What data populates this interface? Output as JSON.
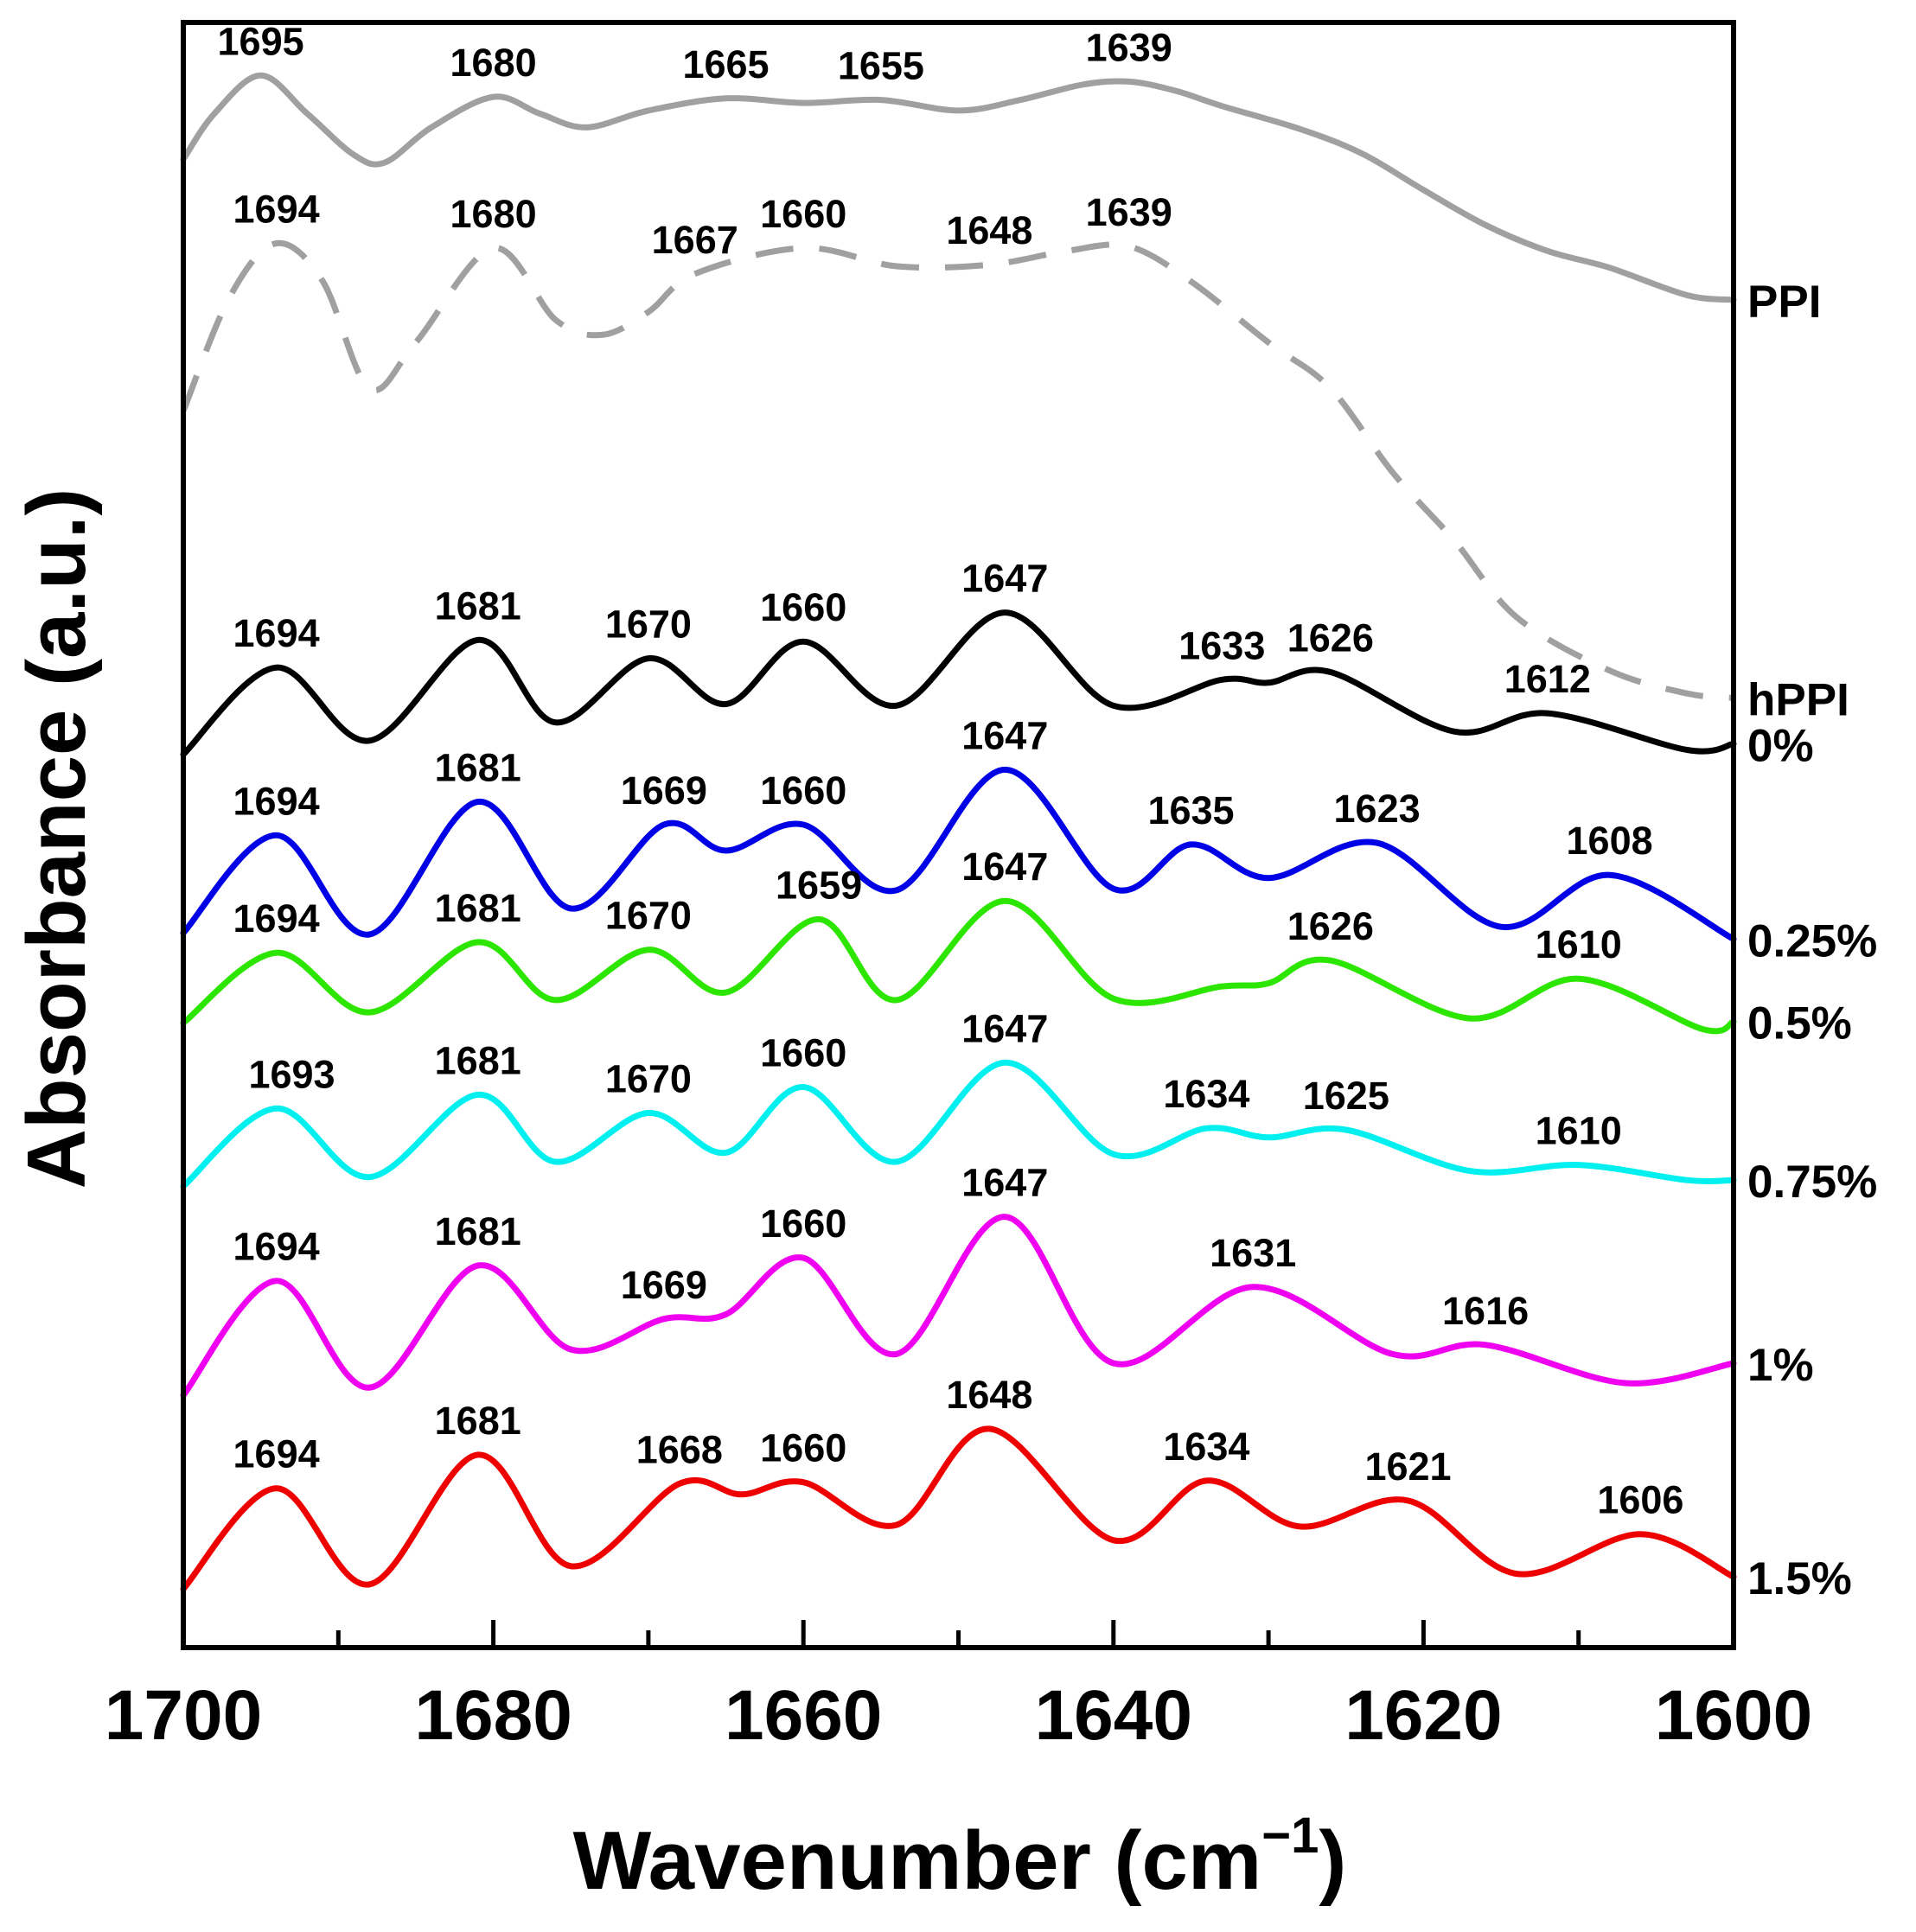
{
  "chart_data": {
    "type": "line",
    "xlabel": "Wavenumber (cm",
    "xlabel_sup": "−1",
    "xlabel_close": ")",
    "ylabel": "Absorbance (a.u.)",
    "xlim": [
      1700,
      1600
    ],
    "x_reversed": true,
    "x_ticks": [
      "1700",
      "1680",
      "1660",
      "1640",
      "1620",
      "1600"
    ],
    "grid": false,
    "legend": "inline labels at right end of each trace",
    "y_units": "arbitrary offset absorbance (0 = lowest trace level, 100 = top)",
    "series": [
      {
        "name": "PPI",
        "color": "#a0a0a0",
        "dash": false,
        "points": [
          [
            1700,
            95.5
          ],
          [
            1698,
            98.5
          ],
          [
            1695,
            101.0
          ],
          [
            1692,
            98.5
          ],
          [
            1689,
            95.8
          ],
          [
            1687,
            95.3
          ],
          [
            1684,
            97.6
          ],
          [
            1680,
            99.6
          ],
          [
            1677,
            98.5
          ],
          [
            1674,
            97.6
          ],
          [
            1670,
            98.7
          ],
          [
            1665,
            99.5
          ],
          [
            1660,
            99.2
          ],
          [
            1655,
            99.4
          ],
          [
            1650,
            98.7
          ],
          [
            1646,
            99.4
          ],
          [
            1642,
            100.4
          ],
          [
            1639,
            100.6
          ],
          [
            1636,
            100.0
          ],
          [
            1633,
            99.0
          ],
          [
            1628,
            97.5
          ],
          [
            1624,
            95.9
          ],
          [
            1620,
            93.5
          ],
          [
            1616,
            91.2
          ],
          [
            1612,
            89.5
          ],
          [
            1608,
            88.4
          ],
          [
            1603,
            86.6
          ],
          [
            1600,
            86.3
          ]
        ]
      },
      {
        "name": "hPPI",
        "color": "#a0a0a0",
        "dash": true,
        "points": [
          [
            1700,
            79.0
          ],
          [
            1697,
            86.5
          ],
          [
            1694,
            90.0
          ],
          [
            1691,
            87.5
          ],
          [
            1688,
            80.5
          ],
          [
            1685,
            83.5
          ],
          [
            1680,
            89.7
          ],
          [
            1676,
            85.0
          ],
          [
            1673,
            84.0
          ],
          [
            1670,
            85.5
          ],
          [
            1667,
            88.0
          ],
          [
            1660,
            89.7
          ],
          [
            1654,
            88.5
          ],
          [
            1648,
            88.6
          ],
          [
            1643,
            89.5
          ],
          [
            1639,
            89.8
          ],
          [
            1635,
            87.5
          ],
          [
            1630,
            83.5
          ],
          [
            1626,
            80.5
          ],
          [
            1622,
            75.0
          ],
          [
            1618,
            70.5
          ],
          [
            1614,
            65.5
          ],
          [
            1608,
            62.0
          ],
          [
            1603,
            60.5
          ],
          [
            1600,
            60.2
          ]
        ]
      },
      {
        "name": "0%",
        "color": "#000000",
        "dash": false,
        "points": [
          [
            1700,
            56.5
          ],
          [
            1694,
            62.2
          ],
          [
            1688,
            57.4
          ],
          [
            1681,
            64.0
          ],
          [
            1676,
            58.6
          ],
          [
            1670,
            62.8
          ],
          [
            1665,
            59.8
          ],
          [
            1660,
            63.9
          ],
          [
            1654,
            59.7
          ],
          [
            1647,
            65.8
          ],
          [
            1640,
            59.7
          ],
          [
            1633,
            61.4
          ],
          [
            1630,
            61.2
          ],
          [
            1626,
            61.9
          ],
          [
            1618,
            58.0
          ],
          [
            1612,
            59.2
          ],
          [
            1603,
            56.8
          ],
          [
            1600,
            57.2
          ]
        ]
      },
      {
        "name": "0.25%",
        "color": "#0000e6",
        "dash": false,
        "points": [
          [
            1700,
            44.8
          ],
          [
            1694,
            51.2
          ],
          [
            1688,
            44.7
          ],
          [
            1681,
            53.4
          ],
          [
            1675,
            46.4
          ],
          [
            1669,
            51.9
          ],
          [
            1665,
            50.2
          ],
          [
            1660,
            51.9
          ],
          [
            1654,
            47.6
          ],
          [
            1647,
            55.5
          ],
          [
            1640,
            47.7
          ],
          [
            1635,
            50.6
          ],
          [
            1630,
            48.4
          ],
          [
            1623,
            50.7
          ],
          [
            1615,
            45.2
          ],
          [
            1608,
            48.6
          ],
          [
            1600,
            44.4
          ]
        ]
      },
      {
        "name": "0.5%",
        "color": "#2de600",
        "dash": false,
        "points": [
          [
            1700,
            38.9
          ],
          [
            1694,
            43.5
          ],
          [
            1688,
            39.6
          ],
          [
            1681,
            44.2
          ],
          [
            1676,
            40.4
          ],
          [
            1670,
            43.7
          ],
          [
            1665,
            40.9
          ],
          [
            1659,
            45.7
          ],
          [
            1654,
            40.4
          ],
          [
            1647,
            46.9
          ],
          [
            1640,
            40.5
          ],
          [
            1633,
            41.3
          ],
          [
            1630,
            41.5
          ],
          [
            1626,
            43.0
          ],
          [
            1617,
            39.2
          ],
          [
            1610,
            41.8
          ],
          [
            1602,
            38.5
          ],
          [
            1600,
            39.0
          ]
        ]
      },
      {
        "name": "0.75%",
        "color": "#00f0f0",
        "dash": false,
        "points": [
          [
            1700,
            28.2
          ],
          [
            1694,
            33.3
          ],
          [
            1688,
            28.8
          ],
          [
            1681,
            34.2
          ],
          [
            1676,
            29.8
          ],
          [
            1670,
            33.0
          ],
          [
            1665,
            30.4
          ],
          [
            1660,
            34.7
          ],
          [
            1654,
            29.8
          ],
          [
            1647,
            36.3
          ],
          [
            1640,
            30.3
          ],
          [
            1634,
            32.0
          ],
          [
            1630,
            31.4
          ],
          [
            1625,
            31.9
          ],
          [
            1617,
            29.2
          ],
          [
            1610,
            29.6
          ],
          [
            1603,
            28.6
          ],
          [
            1600,
            28.6
          ]
        ]
      },
      {
        "name": "1%",
        "color": "#f000f0",
        "dash": false,
        "points": [
          [
            1700,
            14.5
          ],
          [
            1694,
            22.0
          ],
          [
            1688,
            15.0
          ],
          [
            1681,
            23.0
          ],
          [
            1675,
            17.5
          ],
          [
            1669,
            19.5
          ],
          [
            1665,
            19.8
          ],
          [
            1660,
            23.5
          ],
          [
            1654,
            17.2
          ],
          [
            1647,
            26.2
          ],
          [
            1640,
            16.6
          ],
          [
            1631,
            21.6
          ],
          [
            1622,
            17.2
          ],
          [
            1616,
            17.8
          ],
          [
            1607,
            15.3
          ],
          [
            1600,
            16.6
          ]
        ]
      },
      {
        "name": "1.5%",
        "color": "#ee0000",
        "dash": false,
        "points": [
          [
            1700,
            1.8
          ],
          [
            1694,
            8.4
          ],
          [
            1688,
            2.1
          ],
          [
            1681,
            10.6
          ],
          [
            1675,
            3.3
          ],
          [
            1668,
            8.7
          ],
          [
            1664,
            8.0
          ],
          [
            1660,
            8.8
          ],
          [
            1654,
            6.0
          ],
          [
            1648,
            12.3
          ],
          [
            1640,
            5.0
          ],
          [
            1634,
            8.9
          ],
          [
            1628,
            5.9
          ],
          [
            1621,
            7.6
          ],
          [
            1614,
            2.8
          ],
          [
            1606,
            5.4
          ],
          [
            1600,
            2.6
          ]
        ]
      }
    ],
    "annotations": [
      {
        "series": "PPI",
        "labels": [
          "1695",
          "1680",
          "1665",
          "1655",
          "1639"
        ],
        "x": [
          1695,
          1680,
          1665,
          1655,
          1639
        ],
        "y": [
          101.0,
          99.6,
          99.5,
          99.4,
          100.6
        ]
      },
      {
        "series": "hPPI",
        "labels": [
          "1694",
          "1680",
          "1667",
          "1660",
          "1648",
          "1639"
        ],
        "x": [
          1694,
          1680,
          1667,
          1660,
          1648,
          1639
        ],
        "y": [
          90.0,
          89.7,
          88.0,
          89.7,
          88.6,
          89.8
        ]
      },
      {
        "series": "0%",
        "labels": [
          "1694",
          "1681",
          "1670",
          "1660",
          "1647",
          "1633",
          "1626",
          "1612"
        ],
        "x": [
          1694,
          1681,
          1670,
          1660,
          1647,
          1633,
          1626,
          1612
        ],
        "y": [
          62.2,
          64.0,
          62.8,
          63.9,
          65.8,
          61.4,
          61.9,
          59.2
        ]
      },
      {
        "series": "0.25%",
        "labels": [
          "1694",
          "1681",
          "1669",
          "1660",
          "1647",
          "1635",
          "1623",
          "1608"
        ],
        "x": [
          1694,
          1681,
          1669,
          1660,
          1647,
          1635,
          1623,
          1608
        ],
        "y": [
          51.2,
          53.4,
          51.9,
          51.9,
          55.5,
          50.6,
          50.7,
          48.6
        ]
      },
      {
        "series": "0.5%",
        "labels": [
          "1694",
          "1681",
          "1670",
          "1659",
          "1647",
          "1626",
          "1610"
        ],
        "x": [
          1694,
          1681,
          1670,
          1659,
          1647,
          1626,
          1610
        ],
        "y": [
          43.5,
          44.2,
          43.7,
          45.7,
          46.9,
          43.0,
          41.8
        ]
      },
      {
        "series": "0.75%",
        "labels": [
          "1693",
          "1681",
          "1670",
          "1660",
          "1647",
          "1634",
          "1625",
          "1610"
        ],
        "x": [
          1693,
          1681,
          1670,
          1660,
          1647,
          1634,
          1625,
          1610
        ],
        "y": [
          33.3,
          34.2,
          33.0,
          34.7,
          36.3,
          32.0,
          31.9,
          29.6
        ]
      },
      {
        "series": "1%",
        "labels": [
          "1694",
          "1681",
          "1669",
          "1660",
          "1647",
          "1631",
          "1616"
        ],
        "x": [
          1694,
          1681,
          1669,
          1660,
          1647,
          1631,
          1616
        ],
        "y": [
          22.0,
          23.0,
          19.5,
          23.5,
          26.2,
          21.6,
          17.8
        ]
      },
      {
        "series": "1.5%",
        "labels": [
          "1694",
          "1681",
          "1668",
          "1660",
          "1648",
          "1634",
          "1621",
          "1606"
        ],
        "x": [
          1694,
          1681,
          1668,
          1660,
          1648,
          1634,
          1621,
          1606
        ],
        "y": [
          8.4,
          10.6,
          8.7,
          8.8,
          12.3,
          8.9,
          7.6,
          5.4
        ]
      }
    ]
  }
}
